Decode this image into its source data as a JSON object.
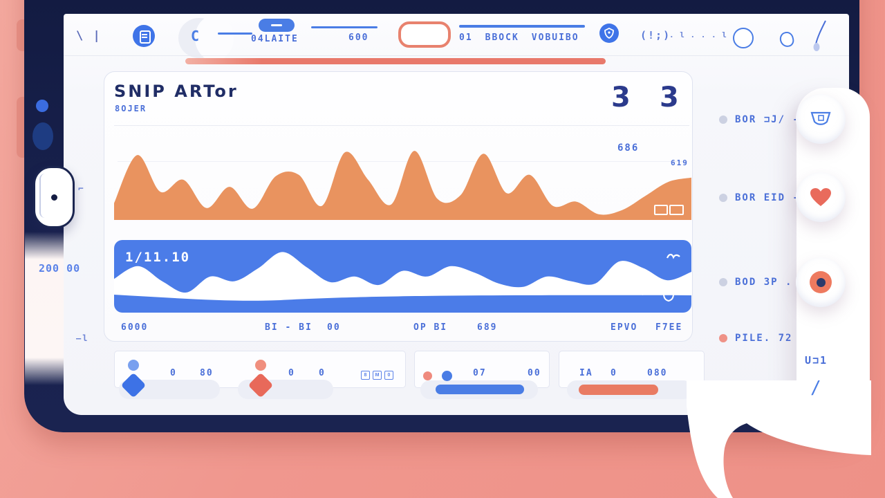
{
  "theme": {
    "bg_pink": "#f0978e",
    "frame_navy": "#18214d",
    "accent_blue": "#4a7de5",
    "band_blue": "#4b7ce8",
    "chart_orange": "#e9935f",
    "accent_salmon": "#e8796b",
    "text_navy": "#243070",
    "text_blue": "#4a6fd8"
  },
  "toolbar": {
    "logo_marks": "\\ |",
    "search_letter": "C",
    "pill_label": "04LAITE",
    "counter": "600",
    "nav_items": [
      "01",
      "BBOCK",
      "VOBUIBO"
    ],
    "glyph_paren": "(!;)",
    "glyph_ticks": ". l . . . l"
  },
  "main_card": {
    "title": "SNIP ARTor",
    "subtitle": "8OJER",
    "stat_a": "3",
    "stat_b": "3",
    "metric_label": "686",
    "metric_sublabel": "619",
    "band_label": "1/11.10",
    "x_labels": [
      "6000",
      "BI - BI",
      "00",
      "OP  BI",
      "689",
      "EPVO",
      "F7EE"
    ]
  },
  "chart_data": [
    {
      "type": "area",
      "series_name": "orange-activity-wave",
      "color": "#e9935f",
      "x_labels": [
        "6000",
        "BI - BI",
        "00",
        "OP  BI",
        "689",
        "EPVO",
        "F7EE"
      ],
      "values": [
        22,
        90,
        38,
        55,
        15,
        45,
        14,
        60,
        62,
        18,
        94,
        55,
        20,
        96,
        28,
        33,
        92,
        36,
        62,
        18,
        24,
        6,
        12,
        32,
        52,
        58
      ],
      "ylim": [
        0,
        100
      ],
      "grid": "single-faint-line",
      "legend": "none"
    },
    {
      "type": "area",
      "series_name": "band-white-wave",
      "color": "#ffffff",
      "background": "#4b7ce8",
      "label": "1/11.10",
      "values": [
        35,
        62,
        30,
        6,
        40,
        30,
        58,
        92,
        60,
        28,
        40,
        22,
        52,
        40,
        62,
        48,
        25,
        18,
        40,
        30,
        25,
        72,
        58,
        32,
        50
      ],
      "ylim": [
        0,
        100
      ],
      "grid": "off",
      "legend": "none"
    }
  ],
  "bottom_cards": {
    "card1": {
      "item1": {
        "icon": "person-blue",
        "v1": "0",
        "v2": "80"
      },
      "item2": {
        "icon": "person-salmon",
        "v1": "0",
        "v2": "0",
        "badges": [
          "8",
          "M",
          "0"
        ]
      }
    },
    "card2": {
      "v1": "07",
      "v2": "00"
    },
    "card3": {
      "v1": "IA",
      "v2": "0",
      "v3": "080"
    }
  },
  "sidebar": {
    "items": [
      {
        "label": "BOR ⊐J/ -",
        "icon": "cup-icon"
      },
      {
        "label": "BOR EID -",
        "icon": "heart-icon"
      },
      {
        "label": "BOD 3P .",
        "icon": "record-icon"
      },
      {
        "label": "PILE. 72",
        "icon": "none"
      }
    ],
    "footer_text": "U⊐1",
    "footer_slash": "/"
  },
  "device": {
    "left_text": "200 00",
    "mark_top": "⌐",
    "mark_bottom": "—l"
  }
}
